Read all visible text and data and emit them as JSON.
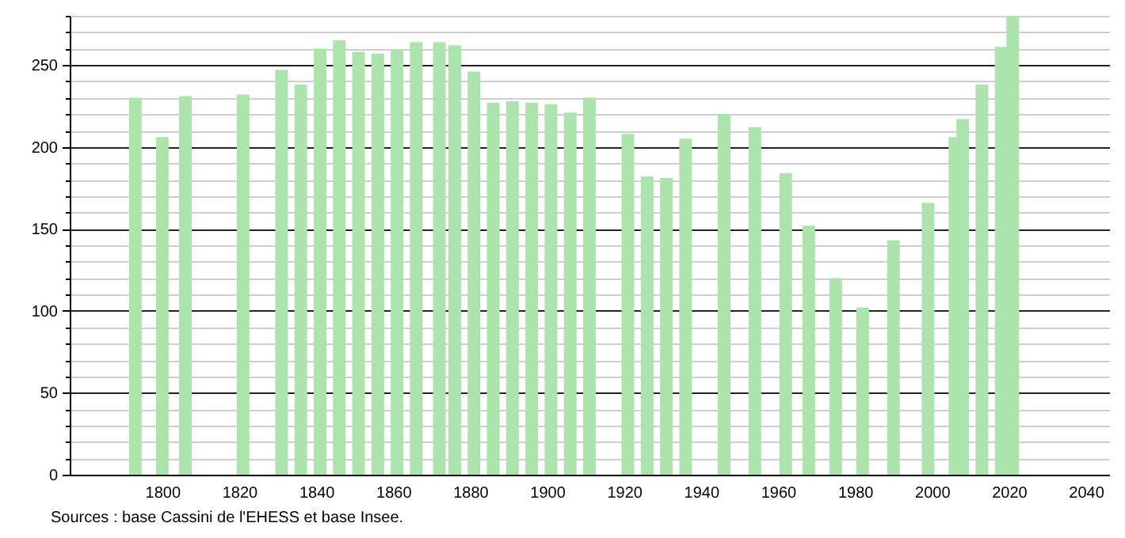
{
  "chart_data": {
    "type": "bar",
    "x": [
      1793,
      1800,
      1806,
      1821,
      1831,
      1836,
      1841,
      1846,
      1851,
      1856,
      1861,
      1866,
      1872,
      1876,
      1881,
      1886,
      1891,
      1896,
      1901,
      1906,
      1911,
      1921,
      1926,
      1931,
      1936,
      1946,
      1954,
      1962,
      1968,
      1975,
      1982,
      1990,
      1999,
      2006,
      2008,
      2013,
      2018,
      2021
    ],
    "values": [
      230,
      206,
      231,
      232,
      247,
      238,
      260,
      265,
      258,
      257,
      259,
      264,
      264,
      262,
      246,
      227,
      228,
      227,
      226,
      221,
      230,
      208,
      182,
      181,
      205,
      220,
      212,
      184,
      152,
      120,
      102,
      143,
      166,
      206,
      217,
      238,
      261,
      280
    ],
    "color": "#ade4ad",
    "xlim": [
      1778,
      2044
    ],
    "xticks": [
      1800,
      1820,
      1840,
      1860,
      1880,
      1900,
      1920,
      1940,
      1960,
      1980,
      2000,
      2020,
      2040
    ],
    "ylim": [
      0,
      280
    ],
    "yticks": [
      0,
      {
        "value": 10,
        "label": null
      },
      {
        "value": 20,
        "label": null
      },
      {
        "value": 30,
        "label": null
      },
      {
        "value": 40,
        "label": null
      },
      50,
      {
        "value": 60,
        "label": null
      },
      {
        "value": 70,
        "label": null
      },
      {
        "value": 80,
        "label": null
      },
      {
        "value": 90,
        "label": null
      },
      100,
      {
        "value": 110,
        "label": null
      },
      {
        "value": 120,
        "label": null
      },
      {
        "value": 130,
        "label": null
      },
      {
        "value": 140,
        "label": null
      },
      150,
      {
        "value": 160,
        "label": null
      },
      {
        "value": 170,
        "label": null
      },
      {
        "value": 180,
        "label": null
      },
      {
        "value": 190,
        "label": null
      },
      200,
      {
        "value": 210,
        "label": null
      },
      {
        "value": 220,
        "label": null
      },
      {
        "value": 230,
        "label": null
      },
      {
        "value": 240,
        "label": null
      },
      250,
      {
        "value": 260,
        "label": null
      },
      {
        "value": 270,
        "label": null
      },
      {
        "value": 280,
        "label": null
      }
    ],
    "grid": "y",
    "annotations": [
      "Sources : base Cassini de l'EHESS et base Insee."
    ]
  }
}
